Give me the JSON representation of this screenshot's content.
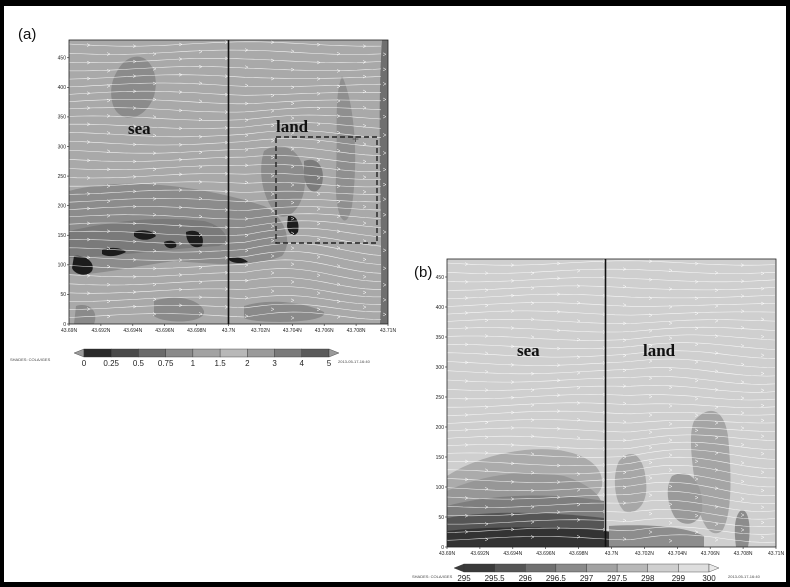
{
  "chart_data": [
    {
      "type": "heatmap",
      "panel_label": "(a)",
      "region_labels": [
        "sea",
        "land"
      ],
      "x_tick_labels": [
        "43.69N",
        "43.692N",
        "43.694N",
        "43.696N",
        "43.698N",
        "43.7N",
        "43.702N",
        "43.704N",
        "43.706N",
        "43.708N",
        "43.71N"
      ],
      "y_tick_labels": [
        "0",
        "50",
        "100",
        "150",
        "200",
        "250",
        "300",
        "350",
        "400",
        "450"
      ],
      "ylim": [
        0,
        480
      ],
      "xlim": [
        43.69,
        43.71
      ],
      "coastline_x": 43.7,
      "highlight_box": {
        "x": [
          43.7035,
          43.7095
        ],
        "y": [
          120,
          315
        ],
        "style": "dashed"
      },
      "colorbar": {
        "levels": [
          "0",
          "0.25",
          "0.5",
          "0.75",
          "1",
          "1.5",
          "2",
          "3",
          "4",
          "5"
        ],
        "left_caption": "SHADES: COLA/IGES",
        "right_caption": "2013-05-17-16:40"
      },
      "streamlines": true
    },
    {
      "type": "heatmap",
      "panel_label": "(b)",
      "region_labels": [
        "sea",
        "land"
      ],
      "x_tick_labels": [
        "43.69N",
        "43.692N",
        "43.694N",
        "43.696N",
        "43.698N",
        "43.7N",
        "43.702N",
        "43.704N",
        "43.706N",
        "43.708N",
        "43.71N"
      ],
      "y_tick_labels": [
        "0",
        "50",
        "100",
        "150",
        "200",
        "250",
        "300",
        "350",
        "400",
        "450"
      ],
      "ylim": [
        0,
        480
      ],
      "xlim": [
        43.69,
        43.71
      ],
      "coastline_x": 43.7,
      "colorbar": {
        "levels": [
          "295",
          "295.5",
          "296",
          "296.5",
          "297",
          "297.5",
          "298",
          "299",
          "300"
        ],
        "left_caption": "SHADES: COLA/IGES",
        "right_caption": "2013-05-17-16:40"
      },
      "streamlines": true
    }
  ]
}
